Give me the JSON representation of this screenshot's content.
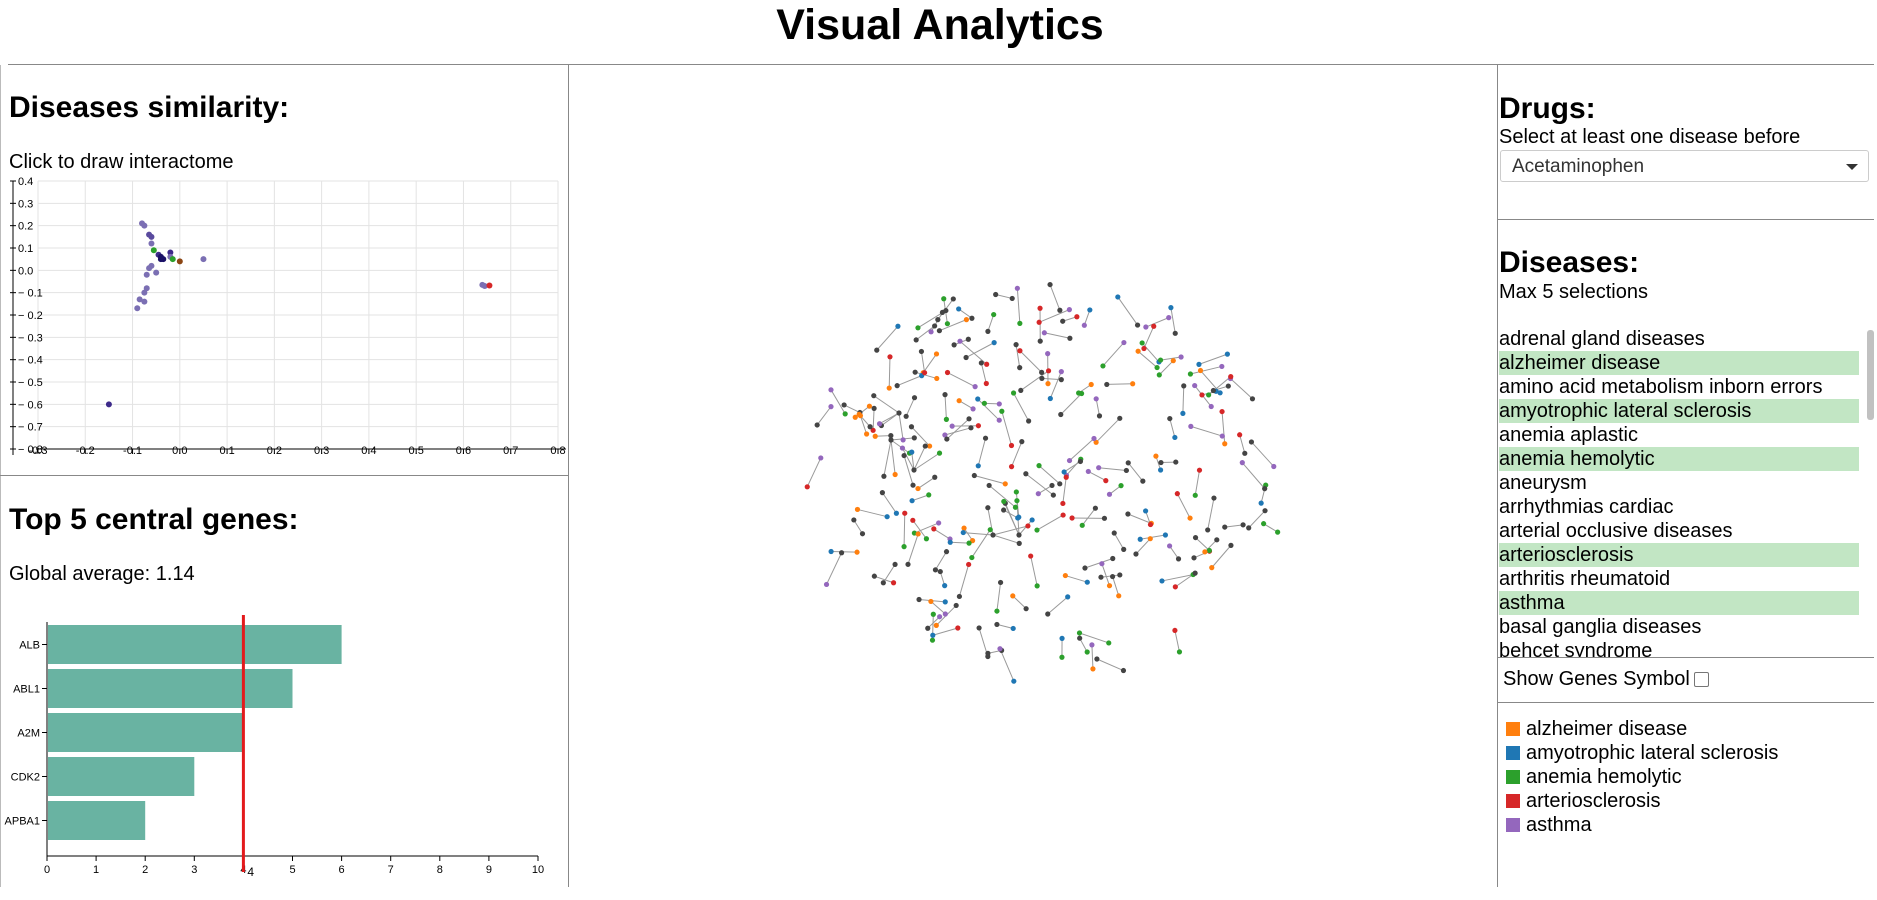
{
  "app_title": "Visual Analytics",
  "similarity": {
    "heading": "Diseases similarity:",
    "hint": "Click to draw interactome"
  },
  "central_genes": {
    "heading": "Top 5 central genes:",
    "global_average": "Global average: 1.14"
  },
  "drugs": {
    "heading": "Drugs:",
    "hint": "Select at least one disease before",
    "selected": "Acetaminophen"
  },
  "diseases": {
    "heading": "Diseases:",
    "hint": "Max 5 selections",
    "items": [
      {
        "label": "adrenal gland diseases",
        "selected": false
      },
      {
        "label": "alzheimer disease",
        "selected": true
      },
      {
        "label": "amino acid metabolism inborn errors",
        "selected": false
      },
      {
        "label": "amyotrophic lateral sclerosis",
        "selected": true
      },
      {
        "label": "anemia aplastic",
        "selected": false
      },
      {
        "label": "anemia hemolytic",
        "selected": true
      },
      {
        "label": "aneurysm",
        "selected": false
      },
      {
        "label": "arrhythmias cardiac",
        "selected": false
      },
      {
        "label": "arterial occlusive diseases",
        "selected": false
      },
      {
        "label": "arteriosclerosis",
        "selected": true
      },
      {
        "label": "arthritis rheumatoid",
        "selected": false
      },
      {
        "label": "asthma",
        "selected": true
      },
      {
        "label": "basal ganglia diseases",
        "selected": false
      },
      {
        "label": "behcet syndrome",
        "selected": false
      }
    ]
  },
  "show_genes_symbol": {
    "label": "Show Genes Symbol",
    "checked": false
  },
  "legend": [
    {
      "label": "alzheimer disease",
      "color": "#ff7f0e"
    },
    {
      "label": "amyotrophic lateral sclerosis",
      "color": "#1f77b4"
    },
    {
      "label": "anemia hemolytic",
      "color": "#2ca02c"
    },
    {
      "label": "arteriosclerosis",
      "color": "#d62728"
    },
    {
      "label": "asthma",
      "color": "#9467bd"
    }
  ],
  "chart_data": [
    {
      "type": "scatter",
      "title": "",
      "xlim": [
        -0.3,
        0.8
      ],
      "ylim": [
        -0.8,
        0.4
      ],
      "x_ticks": [
        "-0.3",
        "-0.2",
        "-0.1",
        "0.0",
        "0.1",
        "0.2",
        "0.3",
        "0.4",
        "0.5",
        "0.6",
        "0.7",
        "0.8"
      ],
      "y_ticks": [
        "0.4",
        "0.3",
        "0.2",
        "0.1",
        "0.0",
        "-0.1",
        "-0.2",
        "-0.3",
        "-0.4",
        "-0.5",
        "-0.6",
        "-0.7",
        "-0.8"
      ],
      "grid": true,
      "points": [
        {
          "x": -0.08,
          "y": 0.21,
          "color": "#7b6fb3"
        },
        {
          "x": -0.075,
          "y": 0.2,
          "color": "#7b6fb3"
        },
        {
          "x": -0.065,
          "y": 0.16,
          "color": "#5a4a9e"
        },
        {
          "x": -0.06,
          "y": 0.15,
          "color": "#5a4a9e"
        },
        {
          "x": -0.06,
          "y": 0.12,
          "color": "#7b6fb3"
        },
        {
          "x": -0.055,
          "y": 0.09,
          "color": "#2ca02c"
        },
        {
          "x": -0.045,
          "y": 0.07,
          "color": "#3d2a8a"
        },
        {
          "x": -0.04,
          "y": 0.06,
          "color": "#1a1066"
        },
        {
          "x": -0.04,
          "y": 0.05,
          "color": "#1a1066"
        },
        {
          "x": -0.035,
          "y": 0.05,
          "color": "#1a1066"
        },
        {
          "x": -0.02,
          "y": 0.08,
          "color": "#3d2a8a"
        },
        {
          "x": -0.02,
          "y": 0.06,
          "color": "#7b6fb3"
        },
        {
          "x": -0.015,
          "y": 0.05,
          "color": "#2ca02c"
        },
        {
          "x": 0.0,
          "y": 0.04,
          "color": "#8b4513"
        },
        {
          "x": 0.05,
          "y": 0.05,
          "color": "#7b6fb3"
        },
        {
          "x": -0.06,
          "y": 0.02,
          "color": "#7b6fb3"
        },
        {
          "x": -0.065,
          "y": 0.01,
          "color": "#7b6fb3"
        },
        {
          "x": -0.05,
          "y": -0.01,
          "color": "#7b6fb3"
        },
        {
          "x": -0.07,
          "y": -0.02,
          "color": "#7b6fb3"
        },
        {
          "x": -0.07,
          "y": -0.08,
          "color": "#7b6fb3"
        },
        {
          "x": -0.075,
          "y": -0.1,
          "color": "#7b6fb3"
        },
        {
          "x": -0.085,
          "y": -0.13,
          "color": "#7b6fb3"
        },
        {
          "x": -0.075,
          "y": -0.14,
          "color": "#7b6fb3"
        },
        {
          "x": -0.09,
          "y": -0.17,
          "color": "#7b6fb3"
        },
        {
          "x": 0.64,
          "y": -0.065,
          "color": "#7b6fb3"
        },
        {
          "x": 0.645,
          "y": -0.07,
          "color": "#7b6fb3"
        },
        {
          "x": 0.655,
          "y": -0.068,
          "color": "#d62728"
        },
        {
          "x": -0.15,
          "y": -0.6,
          "color": "#3d2a8a"
        }
      ]
    },
    {
      "type": "bar",
      "orientation": "horizontal",
      "title": "",
      "categories": [
        "ALB",
        "ABL1",
        "A2M",
        "CDK2",
        "APBA1"
      ],
      "values": [
        6,
        5,
        4,
        3,
        2
      ],
      "xlim": [
        0,
        10
      ],
      "x_ticks": [
        "0",
        "1",
        "2",
        "3",
        "4",
        "5",
        "6",
        "7",
        "8",
        "9",
        "10"
      ],
      "bar_color": "#69b3a2",
      "reference_line": {
        "value": 4,
        "label": "4",
        "color": "#e31a1c"
      }
    }
  ]
}
